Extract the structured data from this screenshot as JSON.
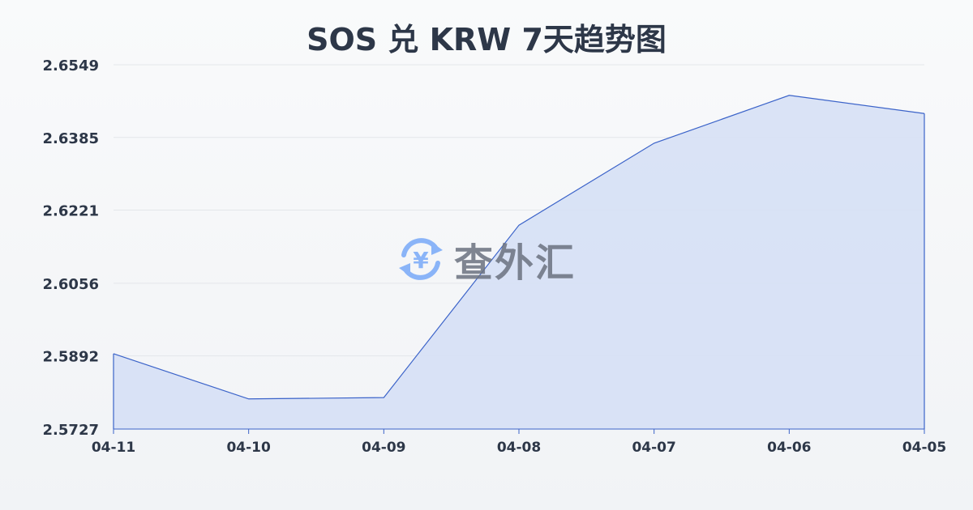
{
  "chart_data": {
    "type": "area",
    "title": "SOS 兑 KRW 7天趋势图",
    "categories": [
      "04-11",
      "04-10",
      "04-09",
      "04-08",
      "04-07",
      "04-06",
      "04-05"
    ],
    "values": [
      2.5897,
      2.5795,
      2.5798,
      2.6187,
      2.6372,
      2.648,
      2.6439
    ],
    "yticks": [
      "2.5727",
      "2.5892",
      "2.6056",
      "2.6221",
      "2.6385",
      "2.6549"
    ],
    "ylim": [
      2.5727,
      2.6549
    ],
    "grid": true,
    "colors": {
      "line": "#3b63c9",
      "fill": "#d6e0f5",
      "grid": "#e3e6ea",
      "text": "#2d3748"
    }
  },
  "watermark": {
    "text": "查外汇",
    "icon": "yen-exchange-icon",
    "color": "#8ab4f8"
  }
}
